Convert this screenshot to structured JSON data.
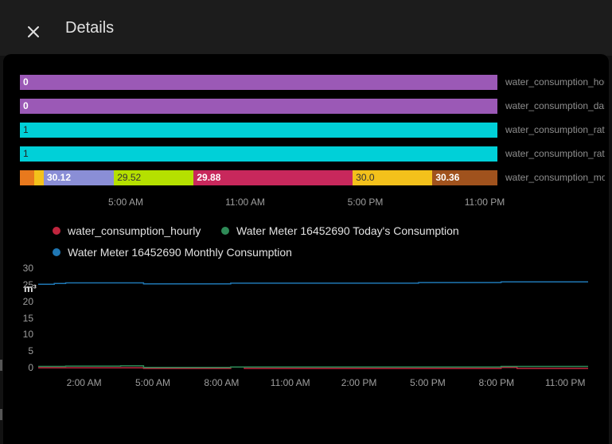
{
  "dialog": {
    "title": "Details"
  },
  "timeline": {
    "rows": [
      {
        "label": "water_consumption_hourly",
        "segments": [
          {
            "text": "0",
            "color": "#9b59b6",
            "share": 1.0,
            "style": "light"
          }
        ]
      },
      {
        "label": "water_consumption_daily",
        "segments": [
          {
            "text": "0",
            "color": "#9b59b6",
            "share": 1.0,
            "style": "light"
          }
        ]
      },
      {
        "label": "water_consumption_rate",
        "segments": [
          {
            "text": "1",
            "color": "#00d0d8",
            "share": 1.0,
            "style": "dark"
          }
        ]
      },
      {
        "label": "water_consumption_rate",
        "segments": [
          {
            "text": "1",
            "color": "#00d0d8",
            "share": 1.0,
            "style": "dark"
          }
        ]
      },
      {
        "label": "water_consumption_monthly",
        "segments": [
          {
            "text": "",
            "color": "#e8791d",
            "share": 0.03,
            "style": "light"
          },
          {
            "text": "",
            "color": "#f3c11b",
            "share": 0.02,
            "style": "light"
          },
          {
            "text": "30.12",
            "color": "#8a8ed6",
            "share": 0.147,
            "style": "light"
          },
          {
            "text": "29.52",
            "color": "#b5e000",
            "share": 0.167,
            "style": "bright"
          },
          {
            "text": "29.88",
            "color": "#c8285c",
            "share": 0.333,
            "style": "light"
          },
          {
            "text": "30.0",
            "color": "#f3c11b",
            "share": 0.167,
            "style": "bright"
          },
          {
            "text": "30.36",
            "color": "#a0521d",
            "share": 0.136,
            "style": "light"
          }
        ]
      }
    ],
    "ticks": [
      "5:00 AM",
      "11:00 AM",
      "5:00 PM",
      "11:00 PM"
    ]
  },
  "line_chart": {
    "unit": "m³",
    "legend": [
      {
        "name": "water_consumption_hourly",
        "color": "#c0253e"
      },
      {
        "name": "Water Meter 16452690 Today's Consumption",
        "color": "#2e8b57"
      },
      {
        "name": "Water Meter 16452690 Monthly Consumption",
        "color": "#1f77b4"
      }
    ],
    "y_ticks": [
      "30",
      "25",
      "20",
      "15",
      "10",
      "5",
      "0"
    ],
    "x_ticks": [
      "2:00 AM",
      "5:00 AM",
      "8:00 AM",
      "11:00 AM",
      "2:00 PM",
      "5:00 PM",
      "8:00 PM",
      "11:00 PM"
    ]
  },
  "chart_data": {
    "type": "line",
    "title": "",
    "xlabel": "",
    "ylabel": "m³",
    "ylim": [
      0,
      30
    ],
    "xlim": [
      0,
      24
    ],
    "series": [
      {
        "name": "water_consumption_hourly",
        "color": "#c0253e",
        "x": [
          0,
          4.6,
          4.6,
          8.4,
          8.4,
          9.0,
          9.0,
          20.2,
          20.2,
          20.9,
          20.9,
          24
        ],
        "y": [
          0.2,
          0.2,
          0.0,
          0.0,
          0.4,
          0.4,
          0.0,
          0.0,
          0.3,
          0.3,
          0.0,
          0.0
        ]
      },
      {
        "name": "Water Meter 16452690 Today's Consumption",
        "color": "#2e8b57",
        "x": [
          0,
          1.2,
          1.2,
          3.6,
          3.6,
          4.6,
          4.6,
          8.4,
          8.4,
          20.2,
          20.2,
          24
        ],
        "y": [
          0.6,
          0.6,
          0.7,
          0.7,
          0.8,
          0.8,
          0.3,
          0.3,
          0.4,
          0.4,
          0.6,
          0.6
        ]
      },
      {
        "name": "Water Meter 16452690 Monthly Consumption",
        "color": "#1f77b4",
        "x": [
          0,
          0.7,
          0.7,
          1.2,
          1.2,
          4.6,
          4.6,
          8.4,
          8.4,
          16.6,
          16.6,
          20.2,
          20.2,
          24
        ],
        "y": [
          25.4,
          25.4,
          25.6,
          25.6,
          25.8,
          25.8,
          25.5,
          25.5,
          25.7,
          25.7,
          25.9,
          25.9,
          26.1,
          26.1
        ]
      }
    ],
    "x_tick_labels": [
      "2:00 AM",
      "5:00 AM",
      "8:00 AM",
      "11:00 AM",
      "2:00 PM",
      "5:00 PM",
      "8:00 PM",
      "11:00 PM"
    ],
    "y_tick_labels": [
      "0",
      "5",
      "10",
      "15",
      "20",
      "25",
      "30"
    ],
    "legend_position": "top"
  }
}
